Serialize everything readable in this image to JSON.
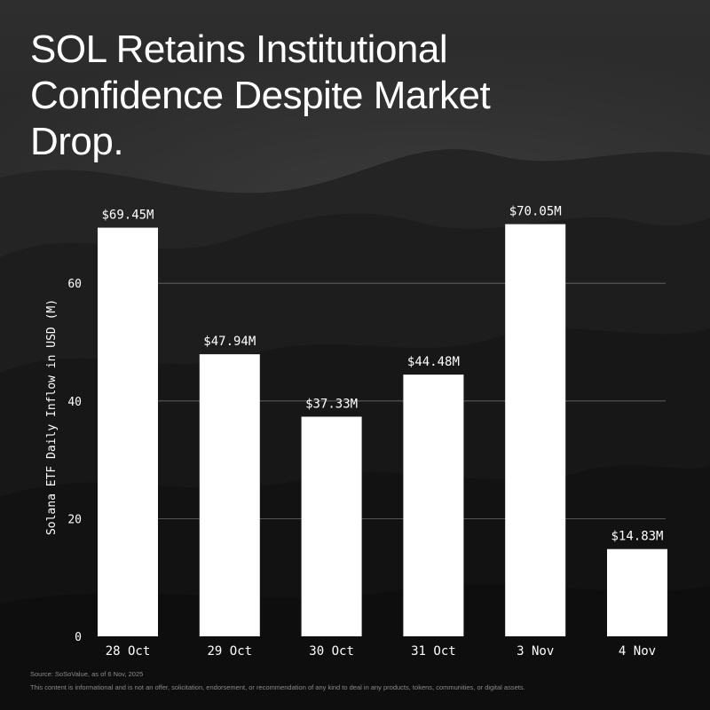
{
  "title": "SOL Retains Institutional Confidence Despite Market Drop.",
  "source": "Source: SoSoValue, as of 6 Nov, 2025",
  "disclaimer": "This content is informational and is not an offer, solicitation, endorsement, or recommendation of any kind to deal in any products, tokens, communities, or digital assets.",
  "colors": {
    "bar": "#ffffff",
    "text": "#ffffff",
    "gridline": "#6a6a6a",
    "muted": "#8a8a8a"
  },
  "chart_data": {
    "type": "bar",
    "categories": [
      "28 Oct",
      "29 Oct",
      "30 Oct",
      "31 Oct",
      "3 Nov",
      "4 Nov"
    ],
    "values": [
      69.45,
      47.94,
      37.33,
      44.48,
      70.05,
      14.83
    ],
    "data_labels": [
      "$69.45M",
      "$47.94M",
      "$37.33M",
      "$44.48M",
      "$70.05M",
      "$14.83M"
    ],
    "ylabel": "Solana ETF Daily Inflow in USD (M)",
    "xlabel": "",
    "yticks": [
      0,
      20,
      40,
      60
    ],
    "ylim": [
      0,
      72
    ],
    "grid": true
  }
}
